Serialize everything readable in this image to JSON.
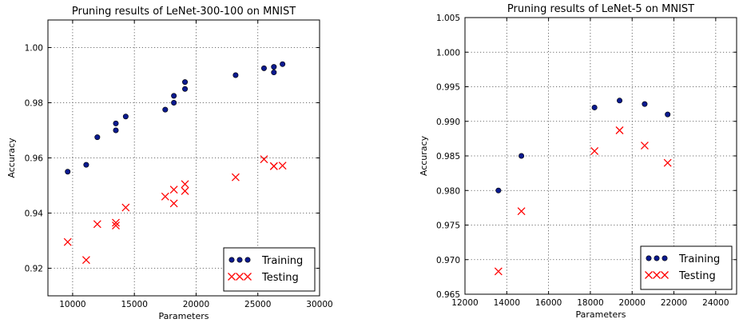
{
  "chart_data": [
    {
      "type": "scatter",
      "title": "Pruning results of LeNet-300-100 on MNIST",
      "xlabel": "Parameters",
      "ylabel": "Accuracy",
      "xlim": [
        8000,
        30000
      ],
      "ylim": [
        0.91,
        1.01
      ],
      "xticks": [
        10000,
        15000,
        20000,
        25000,
        30000
      ],
      "xtick_labels": [
        "10000",
        "15000",
        "20000",
        "25000",
        "30000"
      ],
      "yticks": [
        0.92,
        0.94,
        0.96,
        0.98,
        1.0
      ],
      "ytick_labels": [
        "0.92",
        "0.94",
        "0.96",
        "0.98",
        "1.00"
      ],
      "grid": true,
      "legend_position": "bottom-right",
      "series": [
        {
          "name": "Training",
          "marker": "circle",
          "color": "#0a1a8f",
          "x": [
            9600,
            11100,
            12000,
            13500,
            13500,
            14300,
            17500,
            18200,
            18200,
            19100,
            19100,
            23200,
            25500,
            26300,
            26300,
            27000
          ],
          "y": [
            0.955,
            0.9575,
            0.9675,
            0.9725,
            0.97,
            0.975,
            0.9775,
            0.9825,
            0.98,
            0.9875,
            0.985,
            0.99,
            0.9925,
            0.993,
            0.991,
            0.994
          ]
        },
        {
          "name": "Testing",
          "marker": "x",
          "color": "#ff0000",
          "x": [
            9600,
            11100,
            12000,
            13500,
            13500,
            14300,
            17500,
            18200,
            18200,
            19100,
            19100,
            23200,
            25500,
            26300,
            26300,
            27000
          ],
          "y": [
            0.9295,
            0.923,
            0.936,
            0.9365,
            0.9355,
            0.942,
            0.946,
            0.9485,
            0.9435,
            0.9505,
            0.948,
            0.953,
            0.9595,
            0.957,
            0.957,
            0.9572
          ]
        }
      ]
    },
    {
      "type": "scatter",
      "title": "Pruning results of LeNet-5 on MNIST",
      "xlabel": "Parameters",
      "ylabel": "Accuracy",
      "xlim": [
        12000,
        25000
      ],
      "ylim": [
        0.965,
        1.005
      ],
      "xticks": [
        12000,
        14000,
        16000,
        18000,
        20000,
        22000,
        24000
      ],
      "xtick_labels": [
        "12000",
        "14000",
        "16000",
        "18000",
        "20000",
        "22000",
        "24000"
      ],
      "yticks": [
        0.965,
        0.97,
        0.975,
        0.98,
        0.985,
        0.99,
        0.995,
        1.0,
        1.005
      ],
      "ytick_labels": [
        "0.965",
        "0.970",
        "0.975",
        "0.980",
        "0.985",
        "0.990",
        "0.995",
        "1.000",
        "1.005"
      ],
      "grid": true,
      "legend_position": "bottom-right",
      "series": [
        {
          "name": "Training",
          "marker": "circle",
          "color": "#0a1a8f",
          "x": [
            13600,
            14700,
            18200,
            19400,
            20600,
            21700
          ],
          "y": [
            0.98,
            0.985,
            0.992,
            0.993,
            0.9925,
            0.991
          ]
        },
        {
          "name": "Testing",
          "marker": "x",
          "color": "#ff0000",
          "x": [
            13600,
            14700,
            18200,
            19400,
            20600,
            21700
          ],
          "y": [
            0.9683,
            0.977,
            0.9857,
            0.9887,
            0.9865,
            0.984
          ]
        }
      ]
    }
  ]
}
